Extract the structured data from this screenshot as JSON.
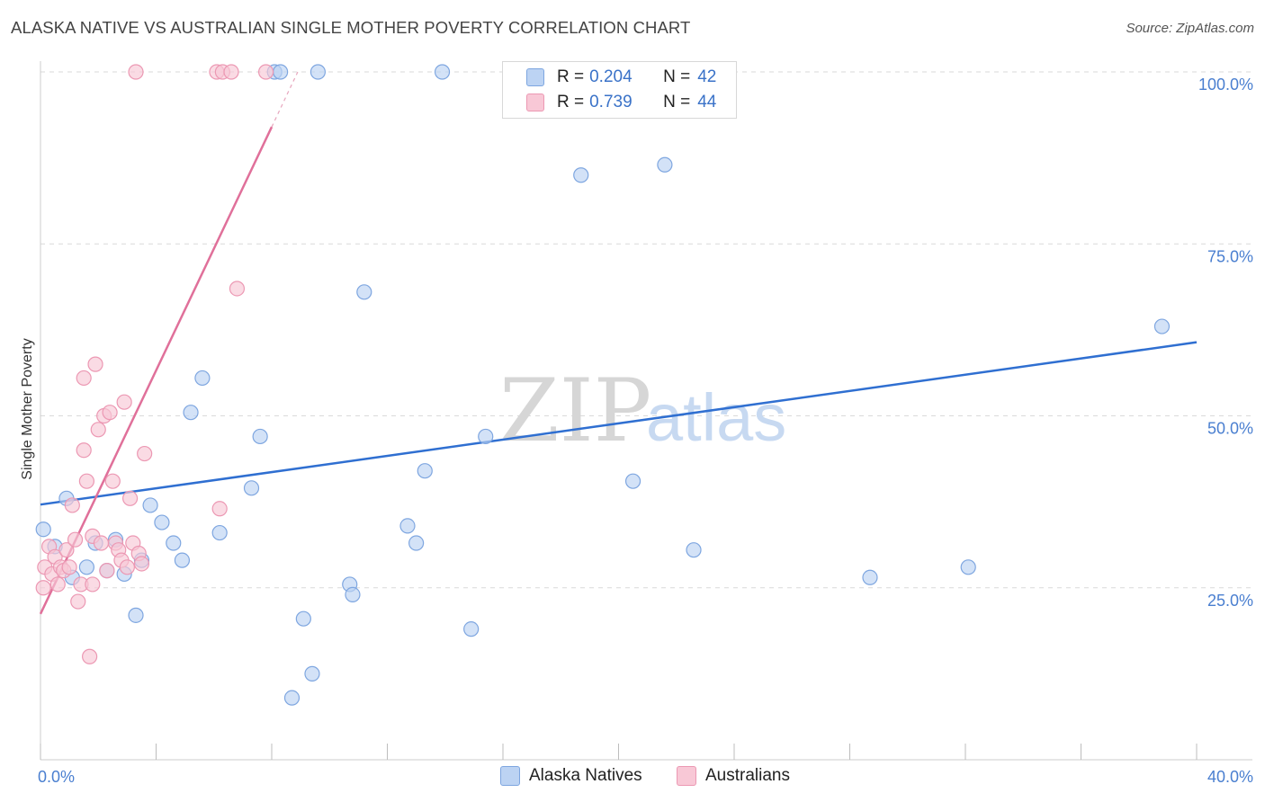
{
  "title": "ALASKA NATIVE VS AUSTRALIAN SINGLE MOTHER POVERTY CORRELATION CHART",
  "source": "Source: ZipAtlas.com",
  "watermark": {
    "zip": "ZIP",
    "atlas": "atlas"
  },
  "colors": {
    "blue_fill": "#bcd3f3",
    "blue_stroke": "#7ea6e0",
    "blue_line": "#2f6fd1",
    "pink_fill": "#f8c8d6",
    "pink_stroke": "#ec98b3",
    "pink_line": "#e0709a",
    "tick_text": "#4a7fd0",
    "grid": "#d9d9d9"
  },
  "legend": {
    "rows": [
      {
        "r_label": "R = ",
        "r_value": "0.204",
        "n_label": "N = ",
        "n_value": "42"
      },
      {
        "r_label": "R = ",
        "r_value": "0.739",
        "n_label": "N = ",
        "n_value": "44"
      }
    ]
  },
  "bottom_legend": {
    "series1": "Alaska Natives",
    "series2": "Australians"
  },
  "chart_data": {
    "type": "scatter",
    "title": "ALASKA NATIVE VS AUSTRALIAN SINGLE MOTHER POVERTY CORRELATION CHART",
    "xlabel": "",
    "ylabel": "Single Mother Poverty",
    "xlim": [
      0,
      40
    ],
    "ylim": [
      0,
      100
    ],
    "x_tick_labels": {
      "min": "0.0%",
      "max": "40.0%"
    },
    "y_ticks": [
      {
        "value": 25,
        "label": "25.0%"
      },
      {
        "value": 50,
        "label": "50.0%"
      },
      {
        "value": 75,
        "label": "75.0%"
      },
      {
        "value": 100,
        "label": "100.0%"
      }
    ],
    "series": [
      {
        "name": "Alaska Natives",
        "r": 0.204,
        "n": 42,
        "trend": {
          "x": [
            0,
            40
          ],
          "y": [
            37.1,
            60.7
          ]
        },
        "points": [
          [
            0.1,
            33.5
          ],
          [
            0.5,
            31.0
          ],
          [
            0.9,
            38.0
          ],
          [
            1.1,
            26.5
          ],
          [
            1.6,
            28.0
          ],
          [
            1.9,
            31.5
          ],
          [
            2.3,
            27.5
          ],
          [
            2.6,
            32.0
          ],
          [
            2.9,
            27.0
          ],
          [
            3.3,
            21.0
          ],
          [
            3.5,
            29.0
          ],
          [
            3.8,
            37.0
          ],
          [
            4.2,
            34.5
          ],
          [
            4.6,
            31.5
          ],
          [
            4.9,
            29.0
          ],
          [
            5.2,
            50.5
          ],
          [
            5.6,
            55.5
          ],
          [
            6.2,
            33.0
          ],
          [
            7.3,
            39.5
          ],
          [
            7.6,
            47.0
          ],
          [
            8.1,
            100.0
          ],
          [
            8.3,
            100.0
          ],
          [
            8.7,
            9.0
          ],
          [
            9.1,
            20.5
          ],
          [
            9.4,
            12.5
          ],
          [
            9.6,
            100.0
          ],
          [
            10.7,
            25.5
          ],
          [
            10.8,
            24.0
          ],
          [
            11.2,
            68.0
          ],
          [
            12.7,
            34.0
          ],
          [
            13.0,
            31.5
          ],
          [
            13.3,
            42.0
          ],
          [
            13.9,
            100.0
          ],
          [
            14.9,
            19.0
          ],
          [
            15.4,
            47.0
          ],
          [
            18.7,
            85.0
          ],
          [
            20.5,
            40.5
          ],
          [
            21.6,
            86.5
          ],
          [
            22.6,
            30.5
          ],
          [
            28.7,
            26.5
          ],
          [
            32.1,
            28.0
          ],
          [
            38.8,
            63.0
          ]
        ]
      },
      {
        "name": "Australians",
        "r": 0.739,
        "n": 44,
        "trend": {
          "x": [
            0,
            8.0
          ],
          "y": [
            21.2,
            92.0
          ]
        },
        "trend_dashed": {
          "x": [
            8.0,
            8.9
          ],
          "y": [
            92.0,
            100.0
          ]
        },
        "points": [
          [
            0.1,
            25.0
          ],
          [
            0.15,
            28.0
          ],
          [
            0.3,
            31.0
          ],
          [
            0.4,
            27.0
          ],
          [
            0.5,
            29.5
          ],
          [
            0.6,
            25.5
          ],
          [
            0.7,
            28.0
          ],
          [
            0.8,
            27.5
          ],
          [
            0.9,
            30.5
          ],
          [
            1.0,
            28.0
          ],
          [
            1.1,
            37.0
          ],
          [
            1.2,
            32.0
          ],
          [
            1.3,
            23.0
          ],
          [
            1.4,
            25.5
          ],
          [
            1.5,
            45.0
          ],
          [
            1.5,
            55.5
          ],
          [
            1.6,
            40.5
          ],
          [
            1.7,
            15.0
          ],
          [
            1.8,
            32.5
          ],
          [
            1.8,
            25.5
          ],
          [
            1.9,
            57.5
          ],
          [
            2.0,
            48.0
          ],
          [
            2.1,
            31.5
          ],
          [
            2.2,
            50.0
          ],
          [
            2.3,
            27.5
          ],
          [
            2.4,
            50.5
          ],
          [
            2.5,
            40.5
          ],
          [
            2.6,
            31.5
          ],
          [
            2.7,
            30.5
          ],
          [
            2.8,
            29.0
          ],
          [
            2.9,
            52.0
          ],
          [
            3.0,
            28.0
          ],
          [
            3.1,
            38.0
          ],
          [
            3.2,
            31.5
          ],
          [
            3.4,
            30.0
          ],
          [
            3.5,
            28.5
          ],
          [
            3.6,
            44.5
          ],
          [
            3.3,
            100.0
          ],
          [
            6.2,
            36.5
          ],
          [
            6.8,
            68.5
          ],
          [
            6.1,
            100.0
          ],
          [
            6.3,
            100.0
          ],
          [
            6.6,
            100.0
          ],
          [
            7.8,
            100.0
          ]
        ]
      }
    ]
  }
}
